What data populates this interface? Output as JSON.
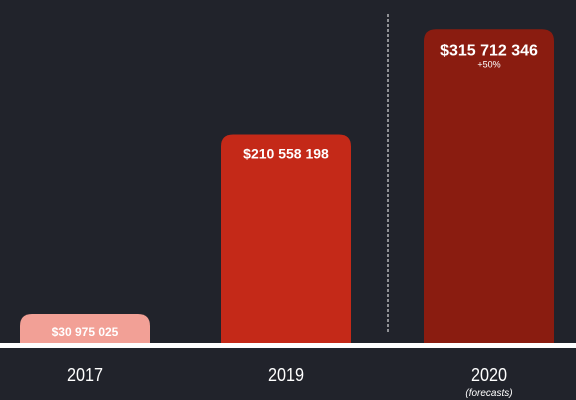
{
  "chart_data": {
    "type": "bar",
    "categories": [
      "2017",
      "2019",
      "2020"
    ],
    "category_notes": [
      "",
      "",
      "(forecasts)"
    ],
    "values": [
      30975025,
      210558198,
      315712346
    ],
    "value_labels": [
      "$30 975 025",
      "$210 558 198",
      "$315 712 346"
    ],
    "bar_notes": [
      "",
      "",
      "+50%"
    ],
    "bar_colors": [
      "#f2a096",
      "#c42918",
      "#8a1c10"
    ],
    "background_color": "#21232b",
    "baseline_color": "#ffffff",
    "separator_before_category": "2020",
    "grid": false,
    "legend": "none",
    "ylim": [
      0,
      335000000
    ]
  }
}
